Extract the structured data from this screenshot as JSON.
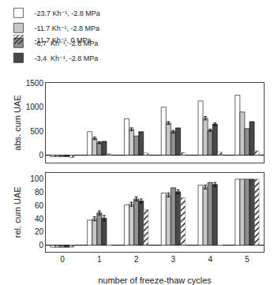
{
  "chart_data": [
    {
      "type": "bar",
      "x": [
        0,
        1,
        2,
        3,
        4,
        5
      ],
      "series": [
        {
          "name": "-23.7 Kh⁻¹, -2.8 MPa",
          "color": "#ffffff",
          "values": [
            -30,
            490,
            760,
            1000,
            1130,
            1250
          ],
          "errors": [
            0,
            0,
            0,
            0,
            0,
            0
          ]
        },
        {
          "name": "-11.7 Kh⁻¹, -2.8 MPa",
          "color": "#c8c8c8",
          "values": [
            -30,
            350,
            540,
            670,
            770,
            900
          ],
          "errors": [
            0,
            25,
            30,
            30,
            35,
            0
          ]
        },
        {
          "name": "-6,7  Kh⁻¹, -2.8 MPa",
          "color": "#909090",
          "values": [
            -30,
            260,
            400,
            490,
            520,
            555
          ],
          "errors": [
            0,
            20,
            0,
            25,
            20,
            0
          ]
        },
        {
          "name": "-3,4  Kh⁻¹, -2.8 MPa",
          "color": "#484848",
          "values": [
            -30,
            290,
            490,
            570,
            645,
            700
          ],
          "errors": [
            0,
            0,
            0,
            0,
            25,
            0
          ]
        },
        {
          "name": "-11.7 Kh⁻¹, 0 MPa",
          "color": "#c8c8c8",
          "marker": "hatch",
          "legend": "upper right",
          "values": [
            -50,
            30,
            50,
            60,
            65,
            90
          ],
          "errors": [
            0,
            0,
            0,
            0,
            0,
            0
          ]
        }
      ],
      "ylabel": "abs. cum UAE",
      "xlim": [
        -0.45,
        5.45
      ],
      "xticks": [
        0,
        1,
        2,
        3,
        4,
        5
      ],
      "ylim": [
        -150,
        1500
      ],
      "yticks": [
        0,
        500,
        1000,
        1500
      ],
      "legend": "upper left",
      "tick_labels": "y",
      "grid": false
    },
    {
      "type": "bar",
      "x": [
        0,
        1,
        2,
        3,
        4,
        5
      ],
      "series": [
        {
          "color": "#ffffff",
          "values": [
            -3,
            38,
            61,
            79,
            91,
            100
          ],
          "errors": [
            0,
            0,
            0,
            0,
            0,
            0
          ]
        },
        {
          "color": "#c8c8c8",
          "values": [
            -3,
            40,
            62,
            76,
            88,
            100
          ],
          "errors": [
            0,
            3,
            3,
            3,
            3,
            0
          ]
        },
        {
          "color": "#909090",
          "values": [
            -3,
            49,
            70,
            87,
            95,
            100
          ],
          "errors": [
            0,
            3,
            3,
            0,
            0,
            0
          ]
        },
        {
          "color": "#484848",
          "values": [
            -3,
            41,
            67,
            81,
            92,
            100
          ],
          "errors": [
            0,
            4,
            3,
            3,
            3,
            0
          ]
        },
        {
          "color": "#c8c8c8",
          "marker": "hatch",
          "values": [
            -3,
            0,
            54,
            72,
            0,
            100
          ],
          "errors": [
            0,
            0,
            0,
            0,
            0,
            0
          ]
        }
      ],
      "xlabel": "number of freeze-thaw cycles",
      "ylabel": "rel. cum UAE",
      "xlim": [
        -0.45,
        5.45
      ],
      "xticks": [
        0,
        1,
        2,
        3,
        4,
        5
      ],
      "ylim": [
        -10,
        110
      ],
      "yticks": [
        0,
        20,
        40,
        60,
        80,
        100
      ],
      "grid": false
    }
  ]
}
